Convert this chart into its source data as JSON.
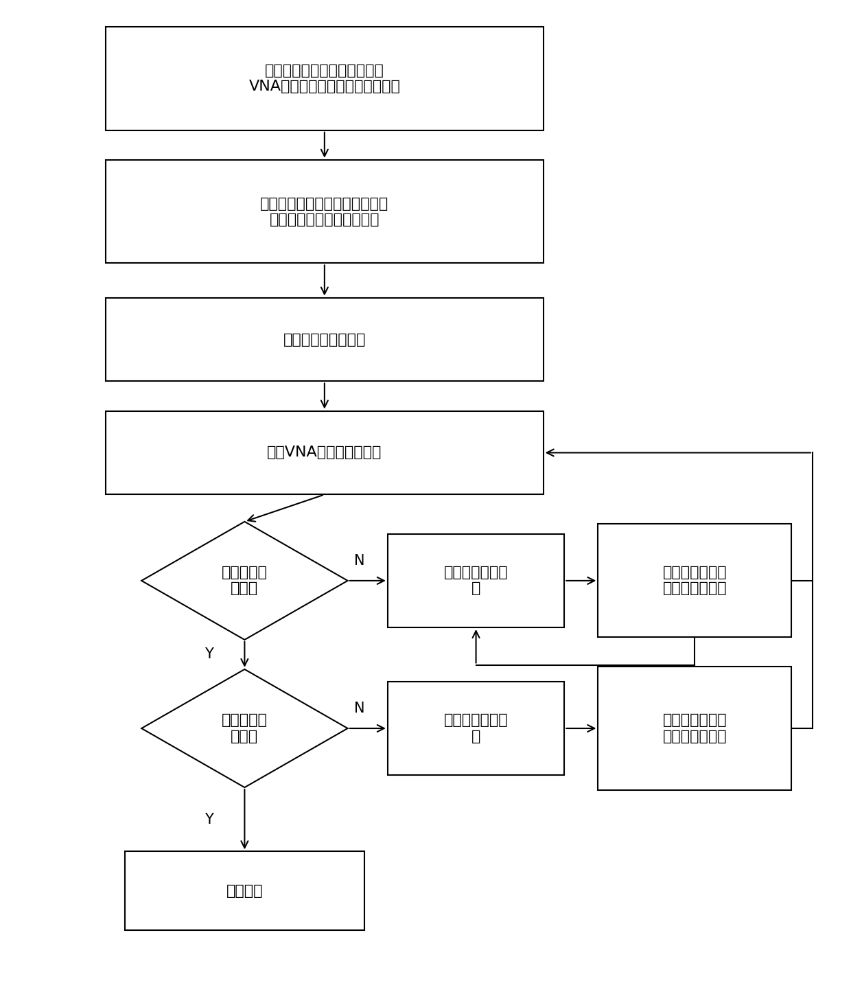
{
  "bg_color": "#ffffff",
  "box_color": "#ffffff",
  "box_edge_color": "#000000",
  "arrow_color": "#000000",
  "text_color": "#000000",
  "font_size": 16,
  "label_font_size": 15,
  "box1_text": "将发射天线、接收天线连接到\nVNA，并固定发射天线和接收天线",
  "box2_text": "控制终端输入测量初始位置、天\n线阵元步长以及天线阵大小",
  "box3_text": "让天线进入初始位置",
  "box4_text": "控制VNA测量并存储数据",
  "dia1_text": "水平位置测\n量结束",
  "box5_text": "进入下一水平位\n置",
  "box6_text": "等待天线进入下\n一水平位置测量",
  "dia2_text": "垂直位置测\n量结束",
  "box7_text": "进入下一垂直位\n置",
  "box8_text": "等待天线支架进\n入下一垂直位置",
  "box9_text": "结束测量",
  "label_N": "N",
  "label_Y": "Y"
}
